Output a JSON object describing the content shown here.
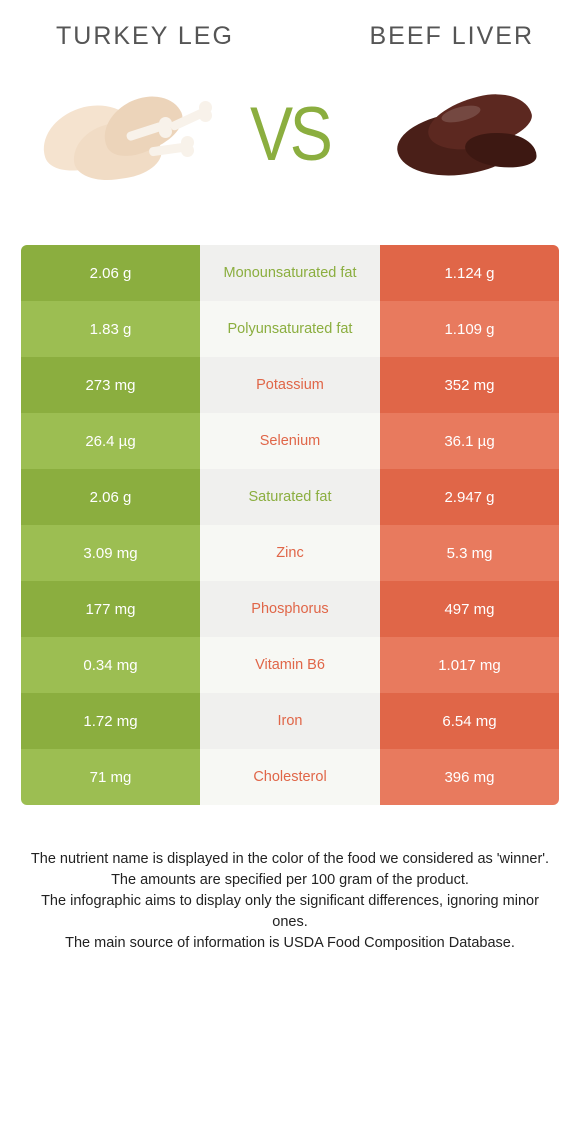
{
  "header": {
    "left_title": "Turkey leg",
    "right_title": "Beef liver",
    "vs_label": "VS"
  },
  "colors": {
    "left_dark": "#8bae3f",
    "left_light": "#9cbe52",
    "mid_dark": "#f0f0ee",
    "mid_light": "#f7f8f4",
    "right_dark": "#e06648",
    "right_light": "#e87a5e",
    "nutrient_left_color": "#8bae3f",
    "nutrient_right_color": "#e06648"
  },
  "rows": [
    {
      "nutrient": "Monounsaturated fat",
      "left": "2.06 g",
      "right": "1.124 g",
      "winner": "left"
    },
    {
      "nutrient": "Polyunsaturated fat",
      "left": "1.83 g",
      "right": "1.109 g",
      "winner": "left"
    },
    {
      "nutrient": "Potassium",
      "left": "273 mg",
      "right": "352 mg",
      "winner": "right"
    },
    {
      "nutrient": "Selenium",
      "left": "26.4 µg",
      "right": "36.1 µg",
      "winner": "right"
    },
    {
      "nutrient": "Saturated fat",
      "left": "2.06 g",
      "right": "2.947 g",
      "winner": "left"
    },
    {
      "nutrient": "Zinc",
      "left": "3.09 mg",
      "right": "5.3 mg",
      "winner": "right"
    },
    {
      "nutrient": "Phosphorus",
      "left": "177 mg",
      "right": "497 mg",
      "winner": "right"
    },
    {
      "nutrient": "Vitamin B6",
      "left": "0.34 mg",
      "right": "1.017 mg",
      "winner": "right"
    },
    {
      "nutrient": "Iron",
      "left": "1.72 mg",
      "right": "6.54 mg",
      "winner": "right"
    },
    {
      "nutrient": "Cholesterol",
      "left": "71 mg",
      "right": "396 mg",
      "winner": "right"
    }
  ],
  "footnotes": {
    "l1": "The nutrient name is displayed in the color of the food we considered as 'winner'.",
    "l2": "The amounts are specified per 100 gram of the product.",
    "l3": "The infographic aims to display only the significant differences, ignoring minor ones.",
    "l4": "The main source of information is USDA Food Composition Database."
  }
}
